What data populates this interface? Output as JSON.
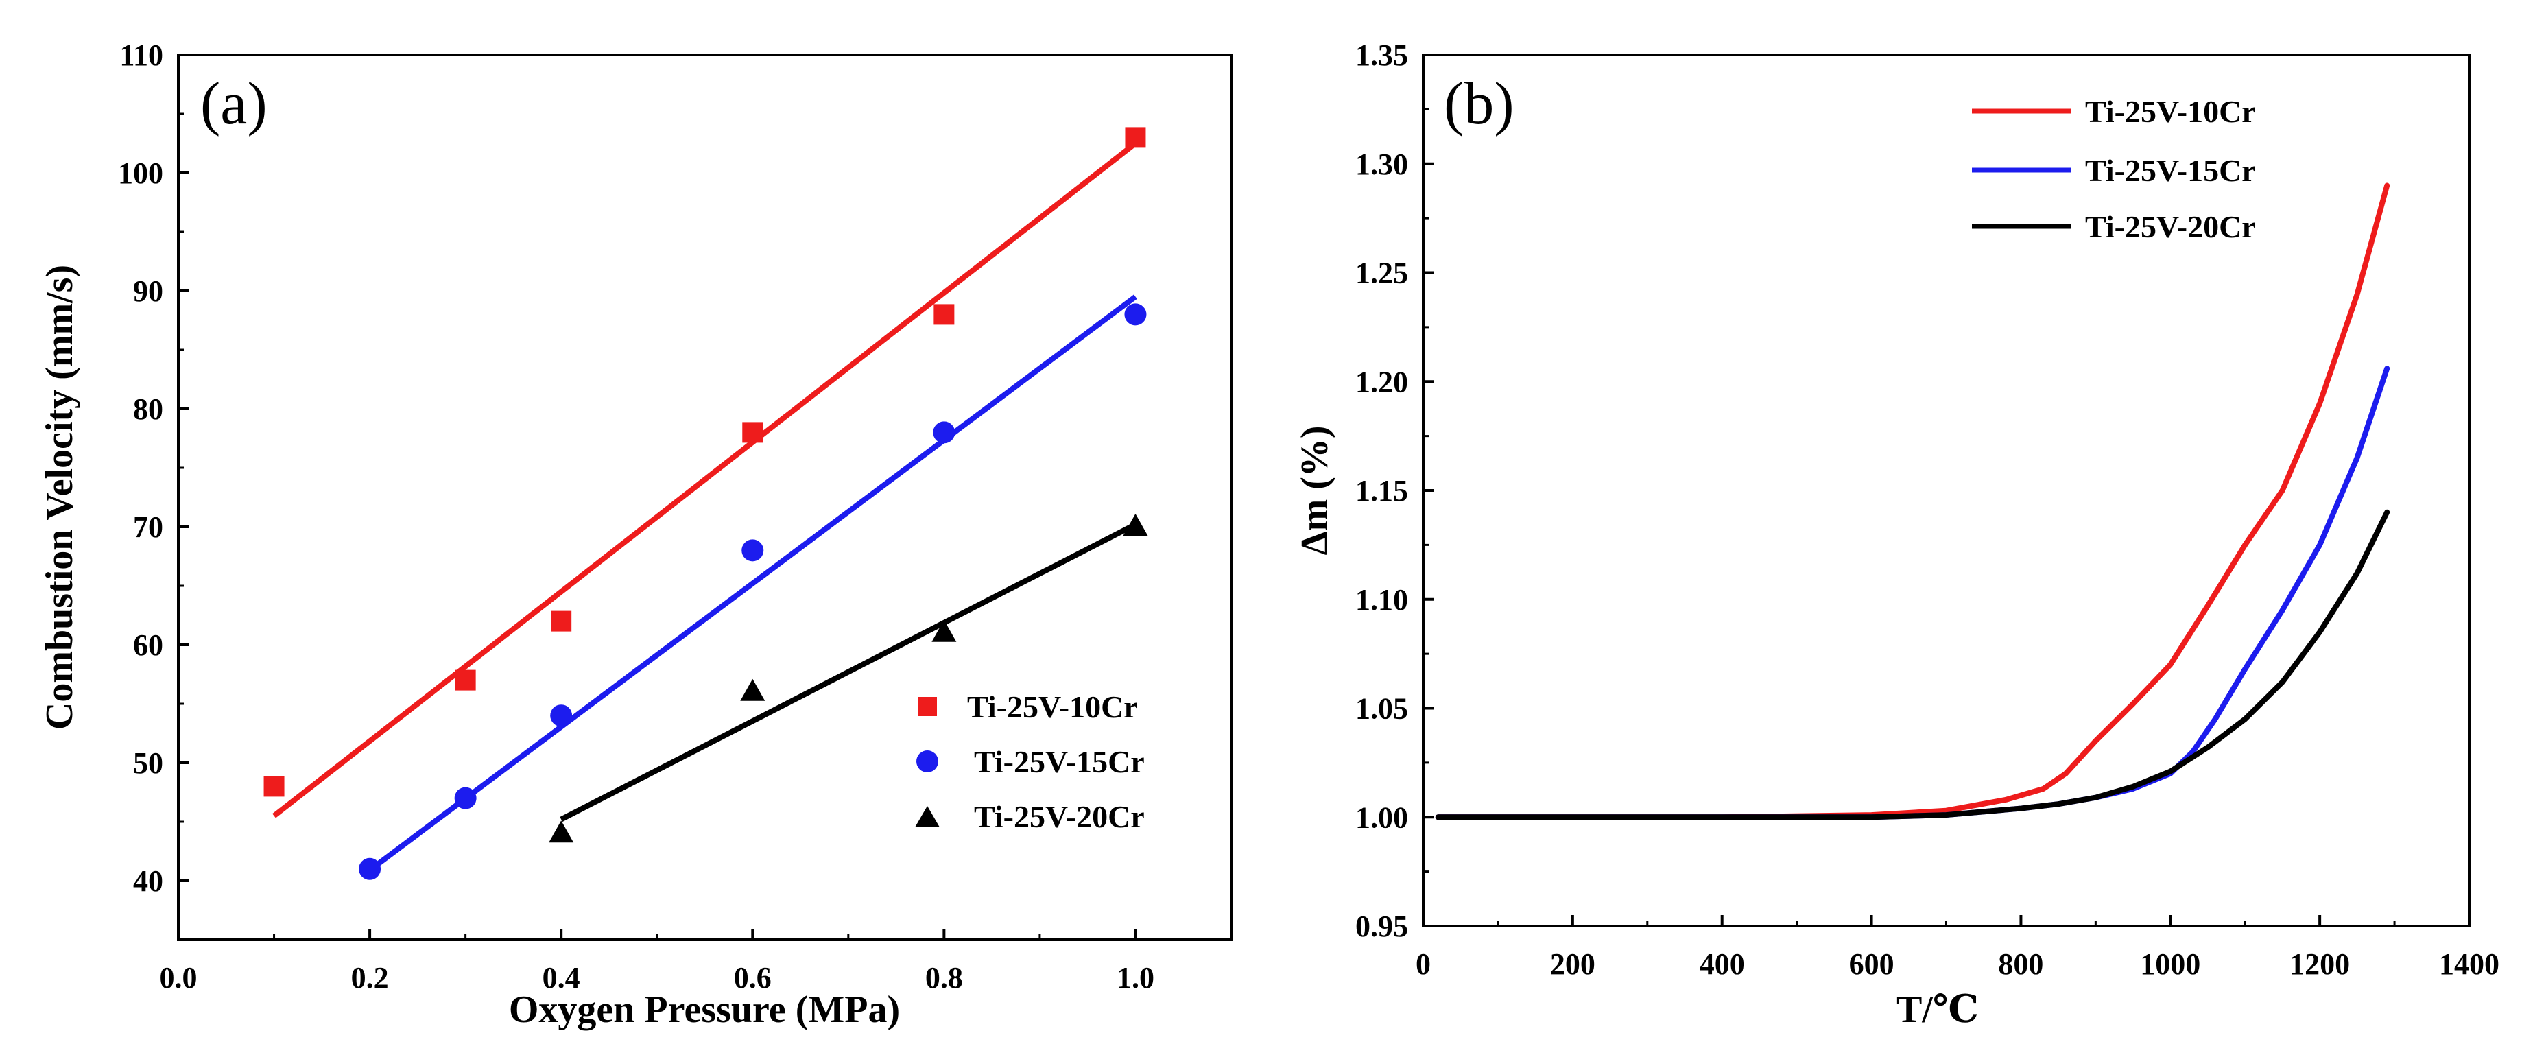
{
  "colors": {
    "red": "#ee1c1c",
    "blue": "#1c1cee",
    "black": "#000000"
  },
  "chart_data": [
    {
      "type": "scatter",
      "panel_label": "(a)",
      "title": "",
      "xlabel": "Oxygen Pressure (MPa)",
      "ylabel": "Combustion Velocity (mm/s)",
      "xlim": [
        0.0,
        1.1
      ],
      "ylim": [
        35,
        110
      ],
      "xticks": [
        "0.0",
        "0.2",
        "0.4",
        "0.6",
        "0.8",
        "1.0"
      ],
      "xtick_values": [
        0.0,
        0.2,
        0.4,
        0.6,
        0.8,
        1.0
      ],
      "yticks": [
        "40",
        "50",
        "60",
        "70",
        "80",
        "90",
        "100",
        "110"
      ],
      "ytick_values": [
        40,
        50,
        60,
        70,
        80,
        90,
        100,
        110
      ],
      "legend_position": "bottom-right",
      "series": [
        {
          "name": "Ti-25V-10Cr",
          "marker": "square",
          "color": "#ee1c1c",
          "x": [
            0.1,
            0.3,
            0.4,
            0.6,
            0.8,
            1.0
          ],
          "y": [
            48,
            57,
            62,
            78,
            88,
            103
          ],
          "fit": {
            "x": [
              0.1,
              1.0
            ],
            "y": [
              45.5,
              102.5
            ]
          }
        },
        {
          "name": "Ti-25V-15Cr",
          "marker": "circle",
          "color": "#1c1cee",
          "x": [
            0.2,
            0.3,
            0.4,
            0.6,
            0.8,
            1.0
          ],
          "y": [
            41,
            47,
            54,
            68,
            78,
            88
          ],
          "fit": {
            "x": [
              0.2,
              1.0
            ],
            "y": [
              40.9,
              89.5
            ]
          }
        },
        {
          "name": "Ti-25V-20Cr",
          "marker": "triangle",
          "color": "#000000",
          "x": [
            0.4,
            0.6,
            0.8,
            1.0
          ],
          "y": [
            44,
            56,
            61,
            70
          ],
          "fit": {
            "x": [
              0.4,
              1.0
            ],
            "y": [
              45.2,
              70.2
            ]
          }
        }
      ]
    },
    {
      "type": "line",
      "panel_label": "(b)",
      "title": "",
      "xlabel": "T/℃",
      "ylabel": "Δm (%)",
      "xlim": [
        0,
        1400
      ],
      "ylim": [
        0.95,
        1.35
      ],
      "xticks": [
        "0",
        "200",
        "400",
        "600",
        "800",
        "1000",
        "1200",
        "1400"
      ],
      "xtick_values": [
        0,
        200,
        400,
        600,
        800,
        1000,
        1200,
        1400
      ],
      "yticks": [
        "0.95",
        "1.00",
        "1.05",
        "1.10",
        "1.15",
        "1.20",
        "1.25",
        "1.30",
        "1.35"
      ],
      "ytick_values": [
        0.95,
        1.0,
        1.05,
        1.1,
        1.15,
        1.2,
        1.25,
        1.3,
        1.35
      ],
      "legend_position": "top-right",
      "series": [
        {
          "name": "Ti-25V-10Cr",
          "color": "#ee1c1c",
          "x": [
            20,
            200,
            400,
            600,
            700,
            780,
            830,
            860,
            900,
            950,
            1000,
            1050,
            1100,
            1150,
            1200,
            1250,
            1290
          ],
          "y": [
            1.0,
            1.0,
            1.0,
            1.001,
            1.003,
            1.008,
            1.013,
            1.02,
            1.035,
            1.052,
            1.07,
            1.097,
            1.125,
            1.15,
            1.19,
            1.24,
            1.29
          ]
        },
        {
          "name": "Ti-25V-15Cr",
          "color": "#1c1cee",
          "x": [
            20,
            200,
            400,
            600,
            700,
            800,
            850,
            900,
            950,
            1000,
            1030,
            1060,
            1100,
            1150,
            1200,
            1250,
            1290
          ],
          "y": [
            1.0,
            1.0,
            1.0,
            1.0,
            1.001,
            1.004,
            1.006,
            1.009,
            1.013,
            1.02,
            1.03,
            1.045,
            1.068,
            1.095,
            1.125,
            1.165,
            1.206
          ]
        },
        {
          "name": "Ti-25V-20Cr",
          "color": "#000000",
          "x": [
            20,
            200,
            400,
            600,
            700,
            800,
            850,
            900,
            950,
            1000,
            1050,
            1100,
            1150,
            1200,
            1250,
            1290
          ],
          "y": [
            1.0,
            1.0,
            1.0,
            1.0,
            1.001,
            1.004,
            1.006,
            1.009,
            1.014,
            1.021,
            1.032,
            1.045,
            1.062,
            1.085,
            1.112,
            1.14
          ]
        }
      ]
    }
  ]
}
